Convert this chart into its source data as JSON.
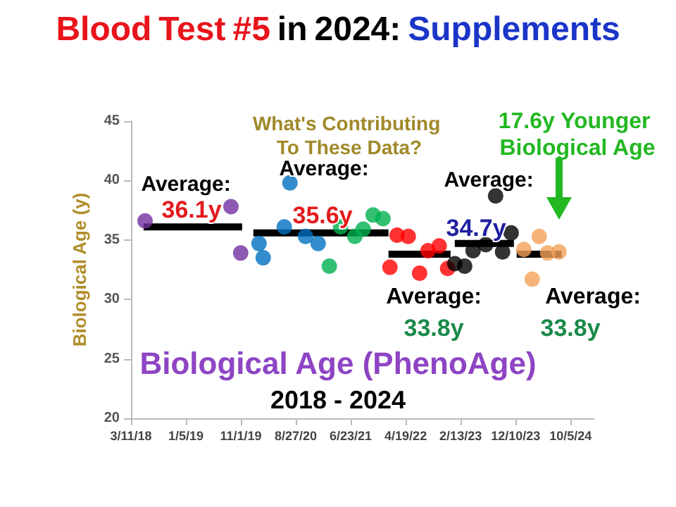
{
  "chart_data": {
    "type": "scatter",
    "title": "Blood Test #5 in 2024: Supplements",
    "ylabel": "Biological Age (y)",
    "xlim": [
      "2018-03-11",
      "2025-02-12"
    ],
    "xticks": [
      {
        "value": "2018-03-11",
        "label": "3/11/18"
      },
      {
        "value": "2019-01-05",
        "label": "1/5/19"
      },
      {
        "value": "2019-11-01",
        "label": "11/1/19"
      },
      {
        "value": "2020-08-27",
        "label": "8/27/20"
      },
      {
        "value": "2021-06-23",
        "label": "6/23/21"
      },
      {
        "value": "2022-04-19",
        "label": "4/19/22"
      },
      {
        "value": "2023-02-13",
        "label": "2/13/23"
      },
      {
        "value": "2023-12-10",
        "label": "12/10/23"
      },
      {
        "value": "2024-10-05",
        "label": "10/5/24"
      }
    ],
    "ylim": [
      20,
      45
    ],
    "yticks": [
      20,
      25,
      30,
      35,
      40,
      45
    ],
    "grid": false,
    "marker": "circle",
    "series": [
      {
        "color": "#7030a0",
        "x": [
          "2018-05-27",
          "2019-09-08",
          "2019-10-31"
        ],
        "values": [
          36.6,
          37.8,
          33.9
        ]
      },
      {
        "color": "#0070c0",
        "x": [
          "2020-02-08",
          "2020-03-02",
          "2020-06-25",
          "2020-07-26",
          "2020-10-19",
          "2020-12-27"
        ],
        "values": [
          34.7,
          33.5,
          36.1,
          39.8,
          35.3,
          34.7
        ]
      },
      {
        "color": "#00b050",
        "x": [
          "2021-02-26",
          "2021-04-29",
          "2021-07-15",
          "2021-08-30",
          "2021-10-23",
          "2021-12-16"
        ],
        "values": [
          32.8,
          36.1,
          35.3,
          35.9,
          37.1,
          36.8
        ]
      },
      {
        "color": "#ff0000",
        "x": [
          "2022-01-23",
          "2022-03-03",
          "2022-05-03",
          "2022-07-04",
          "2022-08-19",
          "2022-10-19",
          "2022-12-04"
        ],
        "values": [
          32.7,
          35.4,
          35.3,
          32.2,
          34.1,
          34.5,
          32.6
        ]
      },
      {
        "color": "#000000",
        "x": [
          "2023-01-12",
          "2023-03-07",
          "2023-04-22",
          "2023-06-30",
          "2023-08-23",
          "2023-09-30",
          "2023-11-16"
        ],
        "values": [
          33.0,
          32.8,
          34.1,
          34.6,
          38.7,
          34.0,
          35.6
        ]
      },
      {
        "color": "#f4a15a",
        "x": [
          "2024-01-24",
          "2024-03-10",
          "2024-04-17",
          "2024-06-02",
          "2024-08-03"
        ],
        "values": [
          34.2,
          31.7,
          35.3,
          33.9,
          34.0
        ]
      },
      {
        "type": "line",
        "color": "#000000",
        "marker": "none",
        "x": [
          "2018-05-19",
          "2019-11-08"
        ],
        "values": [
          36.1,
          36.1
        ]
      },
      {
        "type": "line",
        "color": "#000000",
        "marker": "none",
        "x": [
          "2020-01-08",
          "2022-01-15"
        ],
        "values": [
          35.6,
          35.6
        ]
      },
      {
        "type": "line",
        "color": "#000000",
        "marker": "none",
        "x": [
          "2022-01-15",
          "2022-12-20"
        ],
        "values": [
          33.8,
          33.8
        ]
      },
      {
        "type": "line",
        "color": "#000000",
        "marker": "none",
        "x": [
          "2023-01-12",
          "2023-12-01"
        ],
        "values": [
          34.7,
          34.7
        ]
      },
      {
        "type": "line",
        "color": "#000000",
        "marker": "none",
        "x": [
          "2023-12-16",
          "2024-08-18"
        ],
        "values": [
          33.8,
          33.8
        ]
      }
    ],
    "annotations": [
      "Average:",
      "36.1y",
      "What's Contributing To These Data?",
      "Average:",
      "35.6y",
      "Average:",
      "33.8y",
      "Average:",
      "34.7y",
      "Average:",
      "33.8y",
      "17.6y Younger Biological Age",
      "Biological Age (PhenoAge)",
      "2018 - 2024"
    ]
  }
}
